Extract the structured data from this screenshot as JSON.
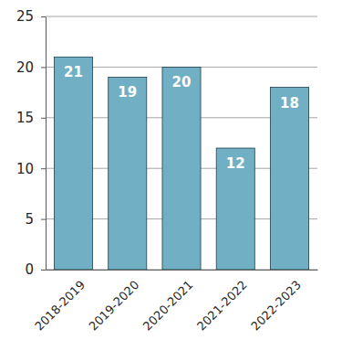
{
  "chart_data": {
    "type": "bar",
    "categories": [
      "2018-2019",
      "2019-2020",
      "2020-2021",
      "2021-2022",
      "2022-2023"
    ],
    "values": [
      21,
      19,
      20,
      12,
      18
    ],
    "color": "#71b0c4",
    "ylim": [
      0,
      25
    ],
    "yticks": [
      0,
      5,
      10,
      15,
      20,
      25
    ],
    "grid": true,
    "data_labels": true
  }
}
